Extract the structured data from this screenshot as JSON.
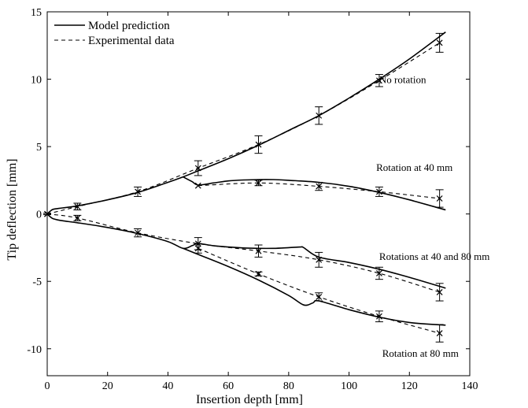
{
  "chart_data": {
    "type": "line",
    "xlabel": "Insertion depth [mm]",
    "ylabel": "Tip deflection [mm]",
    "xlim": [
      0,
      140
    ],
    "ylim": [
      -12,
      15
    ],
    "xticks": [
      0,
      20,
      40,
      60,
      80,
      100,
      120,
      140
    ],
    "yticks": [
      15,
      10,
      5,
      0,
      -5,
      -10
    ],
    "grid": false,
    "legend": {
      "position": "top-left",
      "entries": [
        {
          "label": "Model prediction",
          "style": "solid"
        },
        {
          "label": "Experimental data",
          "style": "dashed"
        }
      ]
    },
    "annotations": [
      {
        "text": "No rotation",
        "x": 110,
        "y": 9.7
      },
      {
        "text": "Rotation at 40 mm",
        "x": 109,
        "y": 3.2
      },
      {
        "text": "Rotations at 40 and 80 mm",
        "x": 110,
        "y": -3.4
      },
      {
        "text": "Rotation at 80 mm",
        "x": 111,
        "y": -10.6
      }
    ],
    "model_series": [
      {
        "case": "No rotation",
        "x": [
          0,
          1,
          2,
          5,
          10,
          20,
          30,
          40,
          45,
          50,
          60,
          70,
          80,
          90,
          100,
          110,
          120,
          132
        ],
        "y": [
          0,
          0.2,
          0.35,
          0.45,
          0.6,
          1.05,
          1.6,
          2.35,
          2.75,
          3.2,
          4.1,
          5.1,
          6.2,
          7.3,
          8.6,
          10.0,
          11.5,
          13.5
        ]
      },
      {
        "case": "Rotation at 40 mm",
        "x": [
          45,
          48,
          50,
          55,
          60,
          65,
          70,
          75,
          80,
          90,
          100,
          110,
          120,
          132
        ],
        "y": [
          2.75,
          2.4,
          2.15,
          2.3,
          2.45,
          2.52,
          2.55,
          2.55,
          2.5,
          2.35,
          2.05,
          1.6,
          1.05,
          0.3
        ]
      },
      {
        "case": "Rotations at 40 and 80 mm",
        "x": [
          0,
          1,
          2,
          5,
          10,
          20,
          30,
          40,
          45,
          48,
          50,
          55,
          60,
          65,
          70,
          75,
          80,
          84,
          85,
          90,
          100,
          110,
          120,
          132
        ],
        "y": [
          0,
          -0.2,
          -0.35,
          -0.5,
          -0.65,
          -1.0,
          -1.45,
          -2.05,
          -2.55,
          -2.35,
          -2.2,
          -2.35,
          -2.45,
          -2.52,
          -2.55,
          -2.55,
          -2.5,
          -2.45,
          -2.5,
          -3.2,
          -3.6,
          -4.1,
          -4.7,
          -5.5
        ]
      },
      {
        "case": "Rotation at 80 mm",
        "x": [
          45,
          50,
          60,
          70,
          80,
          85,
          88,
          90,
          100,
          110,
          120,
          132
        ],
        "y": [
          -2.55,
          -3.0,
          -3.9,
          -4.9,
          -6.05,
          -6.75,
          -6.6,
          -6.45,
          -7.1,
          -7.65,
          -8.05,
          -8.25
        ]
      }
    ],
    "experimental_series": [
      {
        "case": "No rotation",
        "x": [
          0,
          10,
          30,
          50,
          70,
          90,
          110,
          130
        ],
        "y": [
          0,
          0.55,
          1.65,
          3.4,
          5.15,
          7.3,
          9.9,
          12.7
        ],
        "err": [
          0.05,
          0.25,
          0.35,
          0.55,
          0.65,
          0.65,
          0.45,
          0.7
        ]
      },
      {
        "case": "Rotation at 40 mm",
        "x": [
          50,
          70,
          90,
          110,
          130
        ],
        "y": [
          2.1,
          2.3,
          2.05,
          1.65,
          1.15
        ],
        "err": [
          0,
          0.2,
          0.3,
          0.35,
          0.65
        ]
      },
      {
        "case": "Rotations at 40 and 80 mm",
        "x": [
          0,
          10,
          30,
          50,
          70,
          90,
          110,
          130
        ],
        "y": [
          0,
          -0.3,
          -1.4,
          -2.2,
          -2.75,
          -3.4,
          -4.4,
          -5.8
        ],
        "err": [
          0.05,
          0.2,
          0.3,
          0.45,
          0.45,
          0.55,
          0.45,
          0.65
        ]
      },
      {
        "case": "Rotation at 80 mm",
        "x": [
          50,
          70,
          90,
          110,
          130
        ],
        "y": [
          -2.55,
          -4.45,
          -6.15,
          -7.6,
          -8.85
        ],
        "err": [
          0.35,
          0.15,
          0.3,
          0.4,
          0.65
        ]
      }
    ]
  }
}
